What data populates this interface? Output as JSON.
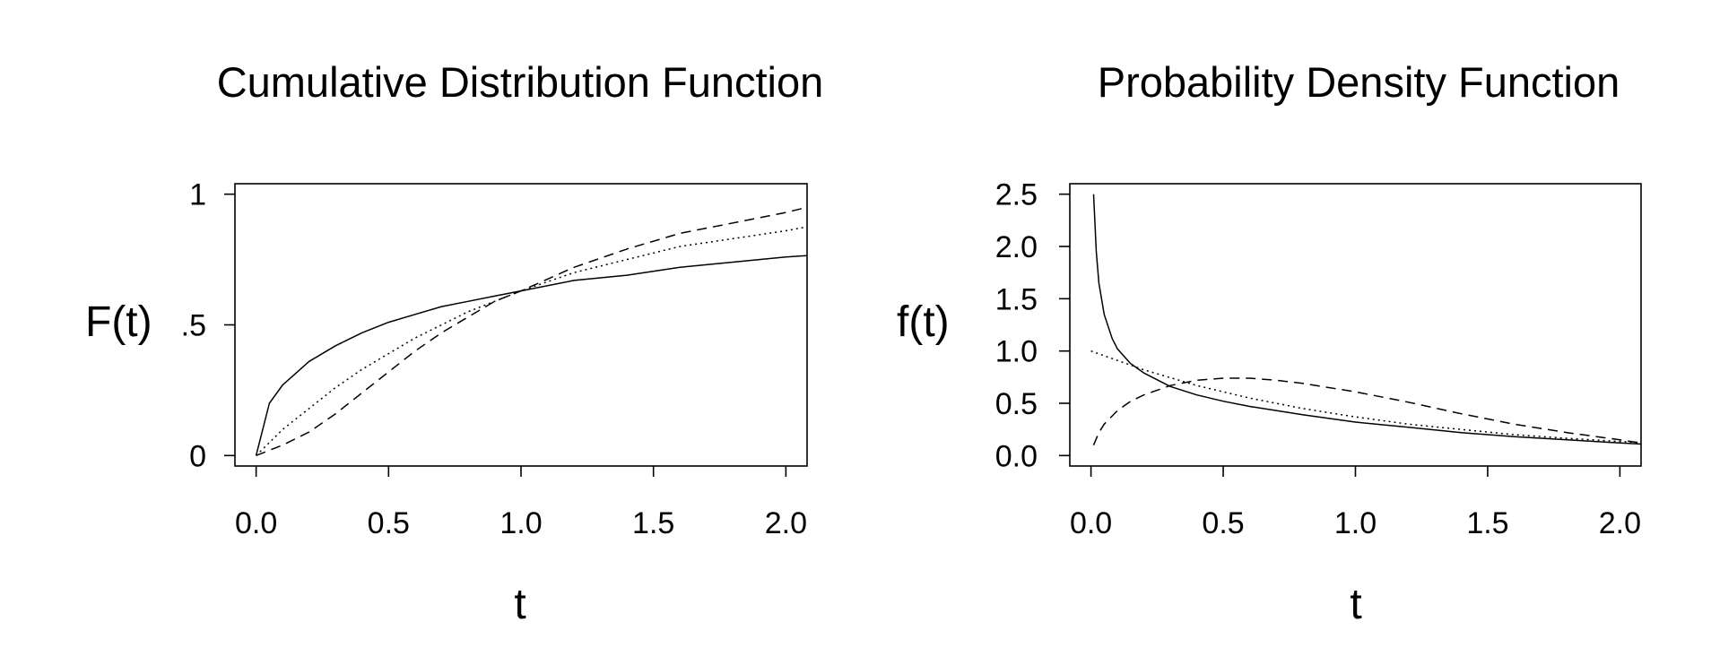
{
  "chart_data": [
    {
      "type": "line",
      "title": "Cumulative Distribution Function",
      "xlabel": "t",
      "ylabel": "F(t)",
      "xlim": [
        -0.08,
        2.08
      ],
      "ylim": [
        -0.04,
        1.04
      ],
      "xticks": [
        {
          "value": 0.0,
          "label": "0.0"
        },
        {
          "value": 0.5,
          "label": "0.5"
        },
        {
          "value": 1.0,
          "label": "1.0"
        },
        {
          "value": 1.5,
          "label": "1.5"
        },
        {
          "value": 2.0,
          "label": "2.0"
        }
      ],
      "yticks": [
        {
          "value": 0,
          "label": "0"
        },
        {
          "value": 0.5,
          "label": ".5"
        },
        {
          "value": 1,
          "label": "1"
        }
      ],
      "grid": false,
      "series": [
        {
          "style": "solid",
          "color": "#000000",
          "x": [
            0,
            0.05,
            0.1,
            0.2,
            0.3,
            0.4,
            0.5,
            0.6,
            0.7,
            0.8,
            0.9,
            1.0,
            1.2,
            1.4,
            1.6,
            1.8,
            2.0,
            2.08
          ],
          "y": [
            0,
            0.2,
            0.27,
            0.36,
            0.42,
            0.47,
            0.51,
            0.54,
            0.57,
            0.59,
            0.61,
            0.63,
            0.67,
            0.69,
            0.72,
            0.74,
            0.76,
            0.765
          ]
        },
        {
          "style": "dotted",
          "color": "#000000",
          "x": [
            0,
            0.05,
            0.1,
            0.2,
            0.3,
            0.4,
            0.5,
            0.6,
            0.7,
            0.8,
            0.9,
            1.0,
            1.2,
            1.4,
            1.6,
            1.8,
            2.0,
            2.08
          ],
          "y": [
            0,
            0.05,
            0.1,
            0.18,
            0.26,
            0.33,
            0.39,
            0.45,
            0.5,
            0.55,
            0.59,
            0.63,
            0.7,
            0.75,
            0.8,
            0.83,
            0.86,
            0.875
          ]
        },
        {
          "style": "dashed",
          "color": "#000000",
          "x": [
            0,
            0.1,
            0.2,
            0.3,
            0.4,
            0.5,
            0.6,
            0.7,
            0.8,
            0.9,
            1.0,
            1.2,
            1.4,
            1.6,
            1.8,
            2.0,
            2.08
          ],
          "y": [
            0,
            0.04,
            0.09,
            0.16,
            0.24,
            0.32,
            0.4,
            0.47,
            0.53,
            0.59,
            0.63,
            0.72,
            0.79,
            0.85,
            0.89,
            0.93,
            0.95
          ]
        }
      ]
    },
    {
      "type": "line",
      "title": "Probability Density Function",
      "xlabel": "t",
      "ylabel": "f(t)",
      "xlim": [
        -0.08,
        2.08
      ],
      "ylim": [
        -0.1,
        2.6
      ],
      "xticks": [
        {
          "value": 0.0,
          "label": "0.0"
        },
        {
          "value": 0.5,
          "label": "0.5"
        },
        {
          "value": 1.0,
          "label": "1.0"
        },
        {
          "value": 1.5,
          "label": "1.5"
        },
        {
          "value": 2.0,
          "label": "2.0"
        }
      ],
      "yticks": [
        {
          "value": 0.0,
          "label": "0.0"
        },
        {
          "value": 0.5,
          "label": "0.5"
        },
        {
          "value": 1.0,
          "label": "1.0"
        },
        {
          "value": 1.5,
          "label": "1.5"
        },
        {
          "value": 2.0,
          "label": "2.0"
        },
        {
          "value": 2.5,
          "label": "2.5"
        }
      ],
      "grid": false,
      "series": [
        {
          "style": "solid",
          "color": "#000000",
          "x": [
            0.01,
            0.02,
            0.03,
            0.05,
            0.08,
            0.1,
            0.15,
            0.2,
            0.3,
            0.4,
            0.5,
            0.6,
            0.8,
            1.0,
            1.2,
            1.4,
            1.6,
            1.8,
            2.0,
            2.08
          ],
          "y": [
            2.5,
            1.95,
            1.65,
            1.35,
            1.12,
            1.02,
            0.88,
            0.79,
            0.66,
            0.58,
            0.52,
            0.47,
            0.39,
            0.32,
            0.27,
            0.22,
            0.18,
            0.15,
            0.12,
            0.11
          ]
        },
        {
          "style": "dotted",
          "color": "#000000",
          "x": [
            0.0,
            0.2,
            0.4,
            0.6,
            0.8,
            1.0,
            1.2,
            1.4,
            1.6,
            1.8,
            2.0,
            2.08
          ],
          "y": [
            1.0,
            0.82,
            0.67,
            0.55,
            0.45,
            0.37,
            0.3,
            0.25,
            0.2,
            0.165,
            0.135,
            0.125
          ]
        },
        {
          "style": "dashed",
          "color": "#000000",
          "x": [
            0.01,
            0.03,
            0.05,
            0.1,
            0.15,
            0.2,
            0.3,
            0.4,
            0.5,
            0.6,
            0.7,
            0.8,
            1.0,
            1.2,
            1.4,
            1.6,
            1.8,
            2.0,
            2.08
          ],
          "y": [
            0.1,
            0.22,
            0.3,
            0.43,
            0.52,
            0.58,
            0.67,
            0.72,
            0.74,
            0.74,
            0.72,
            0.69,
            0.61,
            0.51,
            0.4,
            0.3,
            0.22,
            0.15,
            0.12
          ]
        }
      ]
    }
  ]
}
